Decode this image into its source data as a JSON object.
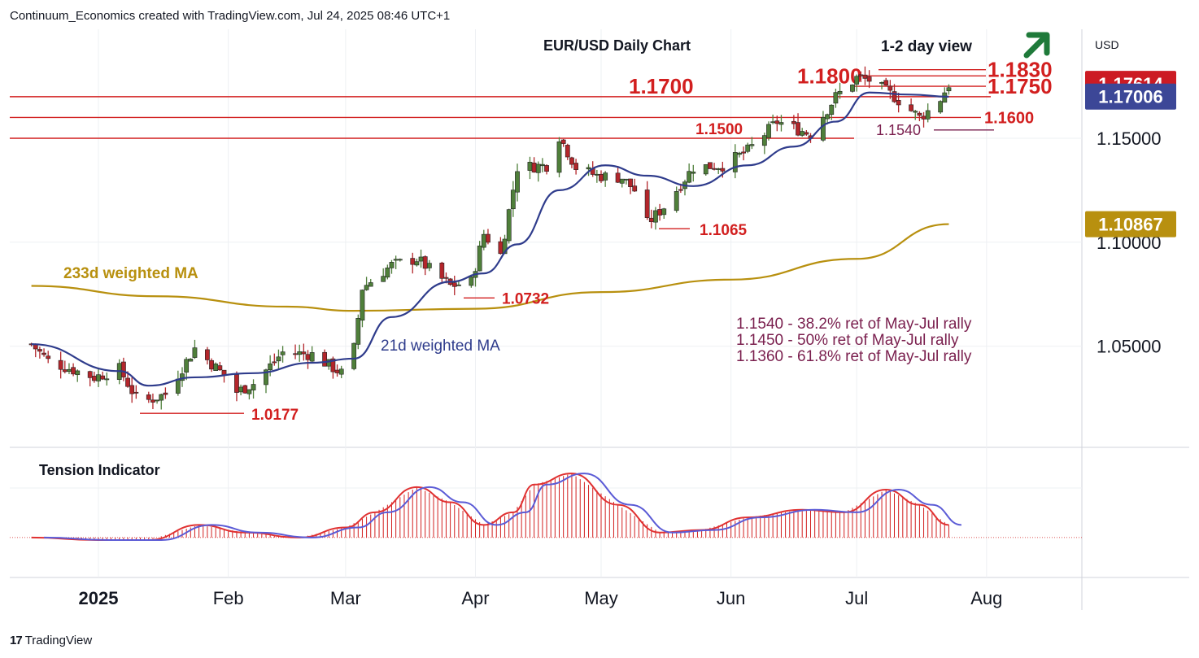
{
  "header": {
    "attribution": "Continuum_Economics created with TradingView.com, Jul 24, 2025 08:46 UTC+1"
  },
  "footer": {
    "brand": "TradingView",
    "logo_glyph": "17"
  },
  "colors": {
    "up": "#4f7f3a",
    "down": "#b3262b",
    "level": "#d21f1f",
    "ma21": "#2f3c8c",
    "ma233": "#b8900f",
    "purple": "#7a1f4e",
    "arrow": "#1f7a3a",
    "price_badge": "#cc1b24",
    "ma21_badge": "#3c4797",
    "ma233_badge": "#b8900f"
  },
  "chart_data": {
    "type": "candlestick",
    "title": "EUR/USD Daily Chart",
    "subtitle": "1-2 day view",
    "outlook_icon": "arrow-up-right-icon",
    "currency_label": "USD",
    "x_tick_labels": [
      "2025",
      "Feb",
      "Mar",
      "Apr",
      "May",
      "Jun",
      "Jul",
      "Aug"
    ],
    "y_tick_labels": [
      "1.15000",
      "1.10000",
      "1.05000"
    ],
    "ylim": [
      1.0065,
      1.1995
    ],
    "price_badges": [
      {
        "label": "1.17614",
        "value": 1.17614,
        "kind": "price"
      },
      {
        "label": "1.17006",
        "value": 1.17006,
        "kind": "ma21"
      },
      {
        "label": "1.10867",
        "value": 1.10867,
        "kind": "ma233"
      }
    ],
    "levels": [
      {
        "label": "1.1830",
        "value": 1.183,
        "size": "large"
      },
      {
        "label": "1.1800",
        "value": 1.18,
        "size": "large"
      },
      {
        "label": "1.1750",
        "value": 1.175,
        "size": "large"
      },
      {
        "label": "1.1700",
        "value": 1.17,
        "size": "large"
      },
      {
        "label": "1.1600",
        "value": 1.16,
        "size": "medium"
      },
      {
        "label": "1.1540",
        "value": 1.154,
        "size": "small"
      },
      {
        "label": "1.1500",
        "value": 1.15,
        "size": "medium"
      },
      {
        "label": "1.1065",
        "value": 1.1065,
        "size": "medium"
      },
      {
        "label": "1.0732",
        "value": 1.0732,
        "size": "medium"
      },
      {
        "label": "1.0177",
        "value": 1.0177,
        "size": "medium"
      }
    ],
    "series_labels": {
      "ma233": "233d weighted MA",
      "ma21": "21d weighted MA"
    },
    "annotations": [
      "1.1540 - 38.2% ret of May-Jul rally",
      "1.1450 - 50% ret of May-Jul rally",
      "1.1360 - 61.8% ret of May-Jul rally"
    ],
    "indicator": {
      "title": "Tension Indicator"
    },
    "close_path": [
      [
        "2024-12-16",
        1.051
      ],
      [
        "2024-12-20",
        1.043
      ],
      [
        "2024-12-24",
        1.04
      ],
      [
        "2024-12-31",
        1.035
      ],
      [
        "2025-01-06",
        1.039
      ],
      [
        "2025-01-10",
        1.025
      ],
      [
        "2025-01-13",
        1.024
      ],
      [
        "2025-01-17",
        1.027
      ],
      [
        "2025-01-24",
        1.049
      ],
      [
        "2025-01-31",
        1.036
      ],
      [
        "2025-02-03",
        1.028
      ],
      [
        "2025-02-07",
        1.032
      ],
      [
        "2025-02-14",
        1.047
      ],
      [
        "2025-02-21",
        1.046
      ],
      [
        "2025-02-28",
        1.037
      ],
      [
        "2025-03-03",
        1.049
      ],
      [
        "2025-03-05",
        1.078
      ],
      [
        "2025-03-12",
        1.089
      ],
      [
        "2025-03-18",
        1.092
      ],
      [
        "2025-03-26",
        1.079
      ],
      [
        "2025-03-31",
        1.081
      ],
      [
        "2025-04-03",
        1.104
      ],
      [
        "2025-04-07",
        1.094
      ],
      [
        "2025-04-11",
        1.136
      ],
      [
        "2025-04-18",
        1.137
      ],
      [
        "2025-04-21",
        1.151
      ],
      [
        "2025-04-25",
        1.136
      ],
      [
        "2025-04-30",
        1.132
      ],
      [
        "2025-05-06",
        1.131
      ],
      [
        "2025-05-09",
        1.125
      ],
      [
        "2025-05-12",
        1.109
      ],
      [
        "2025-05-16",
        1.117
      ],
      [
        "2025-05-23",
        1.136
      ],
      [
        "2025-05-30",
        1.137
      ],
      [
        "2025-06-05",
        1.144
      ],
      [
        "2025-06-12",
        1.158
      ],
      [
        "2025-06-20",
        1.152
      ],
      [
        "2025-06-26",
        1.17
      ],
      [
        "2025-07-01",
        1.179
      ],
      [
        "2025-07-04",
        1.178
      ],
      [
        "2025-07-10",
        1.17
      ],
      [
        "2025-07-16",
        1.16
      ],
      [
        "2025-07-18",
        1.163
      ],
      [
        "2025-07-21",
        1.169
      ],
      [
        "2025-07-23",
        1.176
      ]
    ],
    "ma21_path": [
      [
        "2024-12-16",
        1.051
      ],
      [
        "2025-01-06",
        1.038
      ],
      [
        "2025-01-13",
        1.031
      ],
      [
        "2025-01-24",
        1.035
      ],
      [
        "2025-02-07",
        1.037
      ],
      [
        "2025-02-21",
        1.042
      ],
      [
        "2025-03-03",
        1.044
      ],
      [
        "2025-03-12",
        1.064
      ],
      [
        "2025-03-26",
        1.081
      ],
      [
        "2025-04-03",
        1.085
      ],
      [
        "2025-04-11",
        1.099
      ],
      [
        "2025-04-21",
        1.125
      ],
      [
        "2025-05-02",
        1.137
      ],
      [
        "2025-05-12",
        1.132
      ],
      [
        "2025-05-23",
        1.127
      ],
      [
        "2025-06-05",
        1.137
      ],
      [
        "2025-06-16",
        1.146
      ],
      [
        "2025-06-26",
        1.158
      ],
      [
        "2025-07-04",
        1.172
      ],
      [
        "2025-07-14",
        1.171
      ],
      [
        "2025-07-23",
        1.17
      ]
    ],
    "ma233_path": [
      [
        "2024-12-16",
        1.079
      ],
      [
        "2025-01-15",
        1.074
      ],
      [
        "2025-02-15",
        1.069
      ],
      [
        "2025-03-03",
        1.067
      ],
      [
        "2025-04-01",
        1.068
      ],
      [
        "2025-05-01",
        1.076
      ],
      [
        "2025-06-01",
        1.082
      ],
      [
        "2025-07-01",
        1.092
      ],
      [
        "2025-07-23",
        1.1087
      ]
    ],
    "tension_path": [
      [
        "2024-12-16",
        0.05
      ],
      [
        "2025-01-01",
        0.0
      ],
      [
        "2025-01-13",
        0.0
      ],
      [
        "2025-01-25",
        0.3
      ],
      [
        "2025-02-05",
        0.15
      ],
      [
        "2025-02-18",
        0.05
      ],
      [
        "2025-03-01",
        0.25
      ],
      [
        "2025-03-08",
        0.55
      ],
      [
        "2025-03-18",
        1.05
      ],
      [
        "2025-03-26",
        0.75
      ],
      [
        "2025-04-03",
        0.3
      ],
      [
        "2025-04-10",
        0.55
      ],
      [
        "2025-04-15",
        1.1
      ],
      [
        "2025-04-24",
        1.32
      ],
      [
        "2025-05-05",
        0.7
      ],
      [
        "2025-05-15",
        0.15
      ],
      [
        "2025-05-25",
        0.2
      ],
      [
        "2025-06-05",
        0.45
      ],
      [
        "2025-06-18",
        0.6
      ],
      [
        "2025-06-28",
        0.55
      ],
      [
        "2025-07-08",
        1.0
      ],
      [
        "2025-07-16",
        0.7
      ],
      [
        "2025-07-23",
        0.3
      ]
    ]
  }
}
